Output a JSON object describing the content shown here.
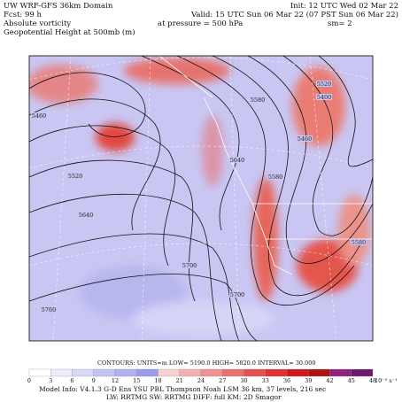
{
  "header": {
    "left": [
      "UW WRF-GFS 36km Domain",
      "Fcst:  99 h",
      "Absolute vorticity",
      "Geopotential Height at 500mb (m)"
    ],
    "right": [
      "Init: 12 UTC Wed 02 Mar 22",
      "Valid: 15 UTC Sun 06 Mar 22 (07 PST Sun 06 Mar 22)"
    ],
    "pressure": "at pressure =   500 hPa",
    "smoothing": "sm= 2"
  },
  "map": {
    "contour_labels": [
      "5460",
      "5520",
      "5640",
      "5700",
      "5760",
      "5580",
      "5400",
      "5520",
      "5640",
      "5460",
      "5580",
      "5700",
      "5580"
    ]
  },
  "footer": {
    "contours": "CONTOURS:  UNITS=m  LOW=  5190.0    HIGH=  5820.0    INTERVAL=   30.000",
    "colorbar_labels": [
      "0",
      "3",
      "6",
      "9",
      "12",
      "15",
      "18",
      "21",
      "24",
      "27",
      "30",
      "33",
      "36",
      "39",
      "42",
      "45",
      "48"
    ],
    "colorbar_unit": "10⁻⁵ s⁻¹",
    "model_info": "Model Info: V4.1.3   G-D Ens  YSU PBL   Thompson    Noah LSM   36 km,   37 levels,   216 sec",
    "physics": "LW: RRTMG  SW: RRTMG   DIFF: full   KM: 2D Smagor"
  }
}
